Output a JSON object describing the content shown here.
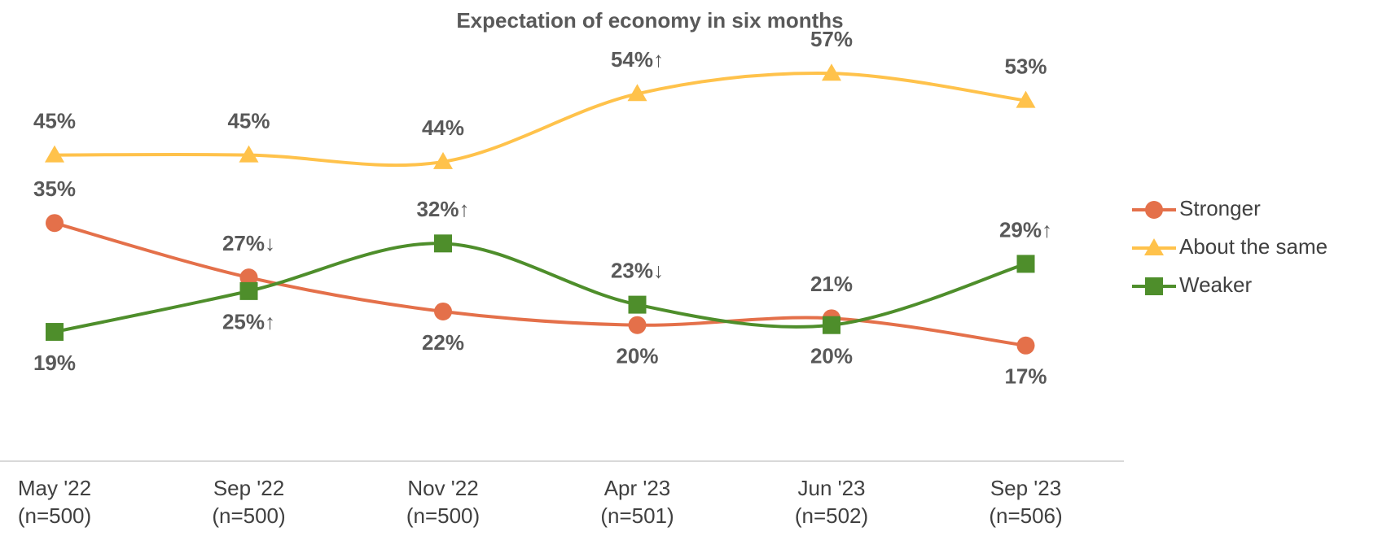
{
  "chart_data": {
    "type": "line",
    "title": "Expectation of economy in six months",
    "categories": [
      "May '22\n(n=500)",
      "Sep '22\n(n=500)",
      "Nov '22\n(n=500)",
      "Apr '23\n(n=501)",
      "Jun '23\n(n=502)",
      "Sep '23\n(n=506)"
    ],
    "ylim": [
      0,
      63
    ],
    "legend": "right",
    "series": [
      {
        "name": "Stronger",
        "color": "#e4704a",
        "marker": "circle",
        "values": [
          35,
          27,
          22,
          20,
          21,
          17
        ],
        "value_labels": [
          "35%",
          "27%↓",
          "22%",
          "20%",
          "21%",
          "17%"
        ]
      },
      {
        "name": "About the same",
        "color": "#ffc24b",
        "marker": "triangle",
        "values": [
          45,
          45,
          44,
          54,
          57,
          53
        ],
        "value_labels": [
          "45%",
          "45%",
          "44%",
          "54%↑",
          "57%",
          "53%"
        ]
      },
      {
        "name": "Weaker",
        "color": "#4e8e2b",
        "marker": "square",
        "values": [
          19,
          25,
          32,
          23,
          20,
          29
        ],
        "value_labels": [
          "19%",
          "25%↑",
          "32%↑",
          "23%↓",
          "20%",
          "29%↑"
        ]
      }
    ]
  }
}
